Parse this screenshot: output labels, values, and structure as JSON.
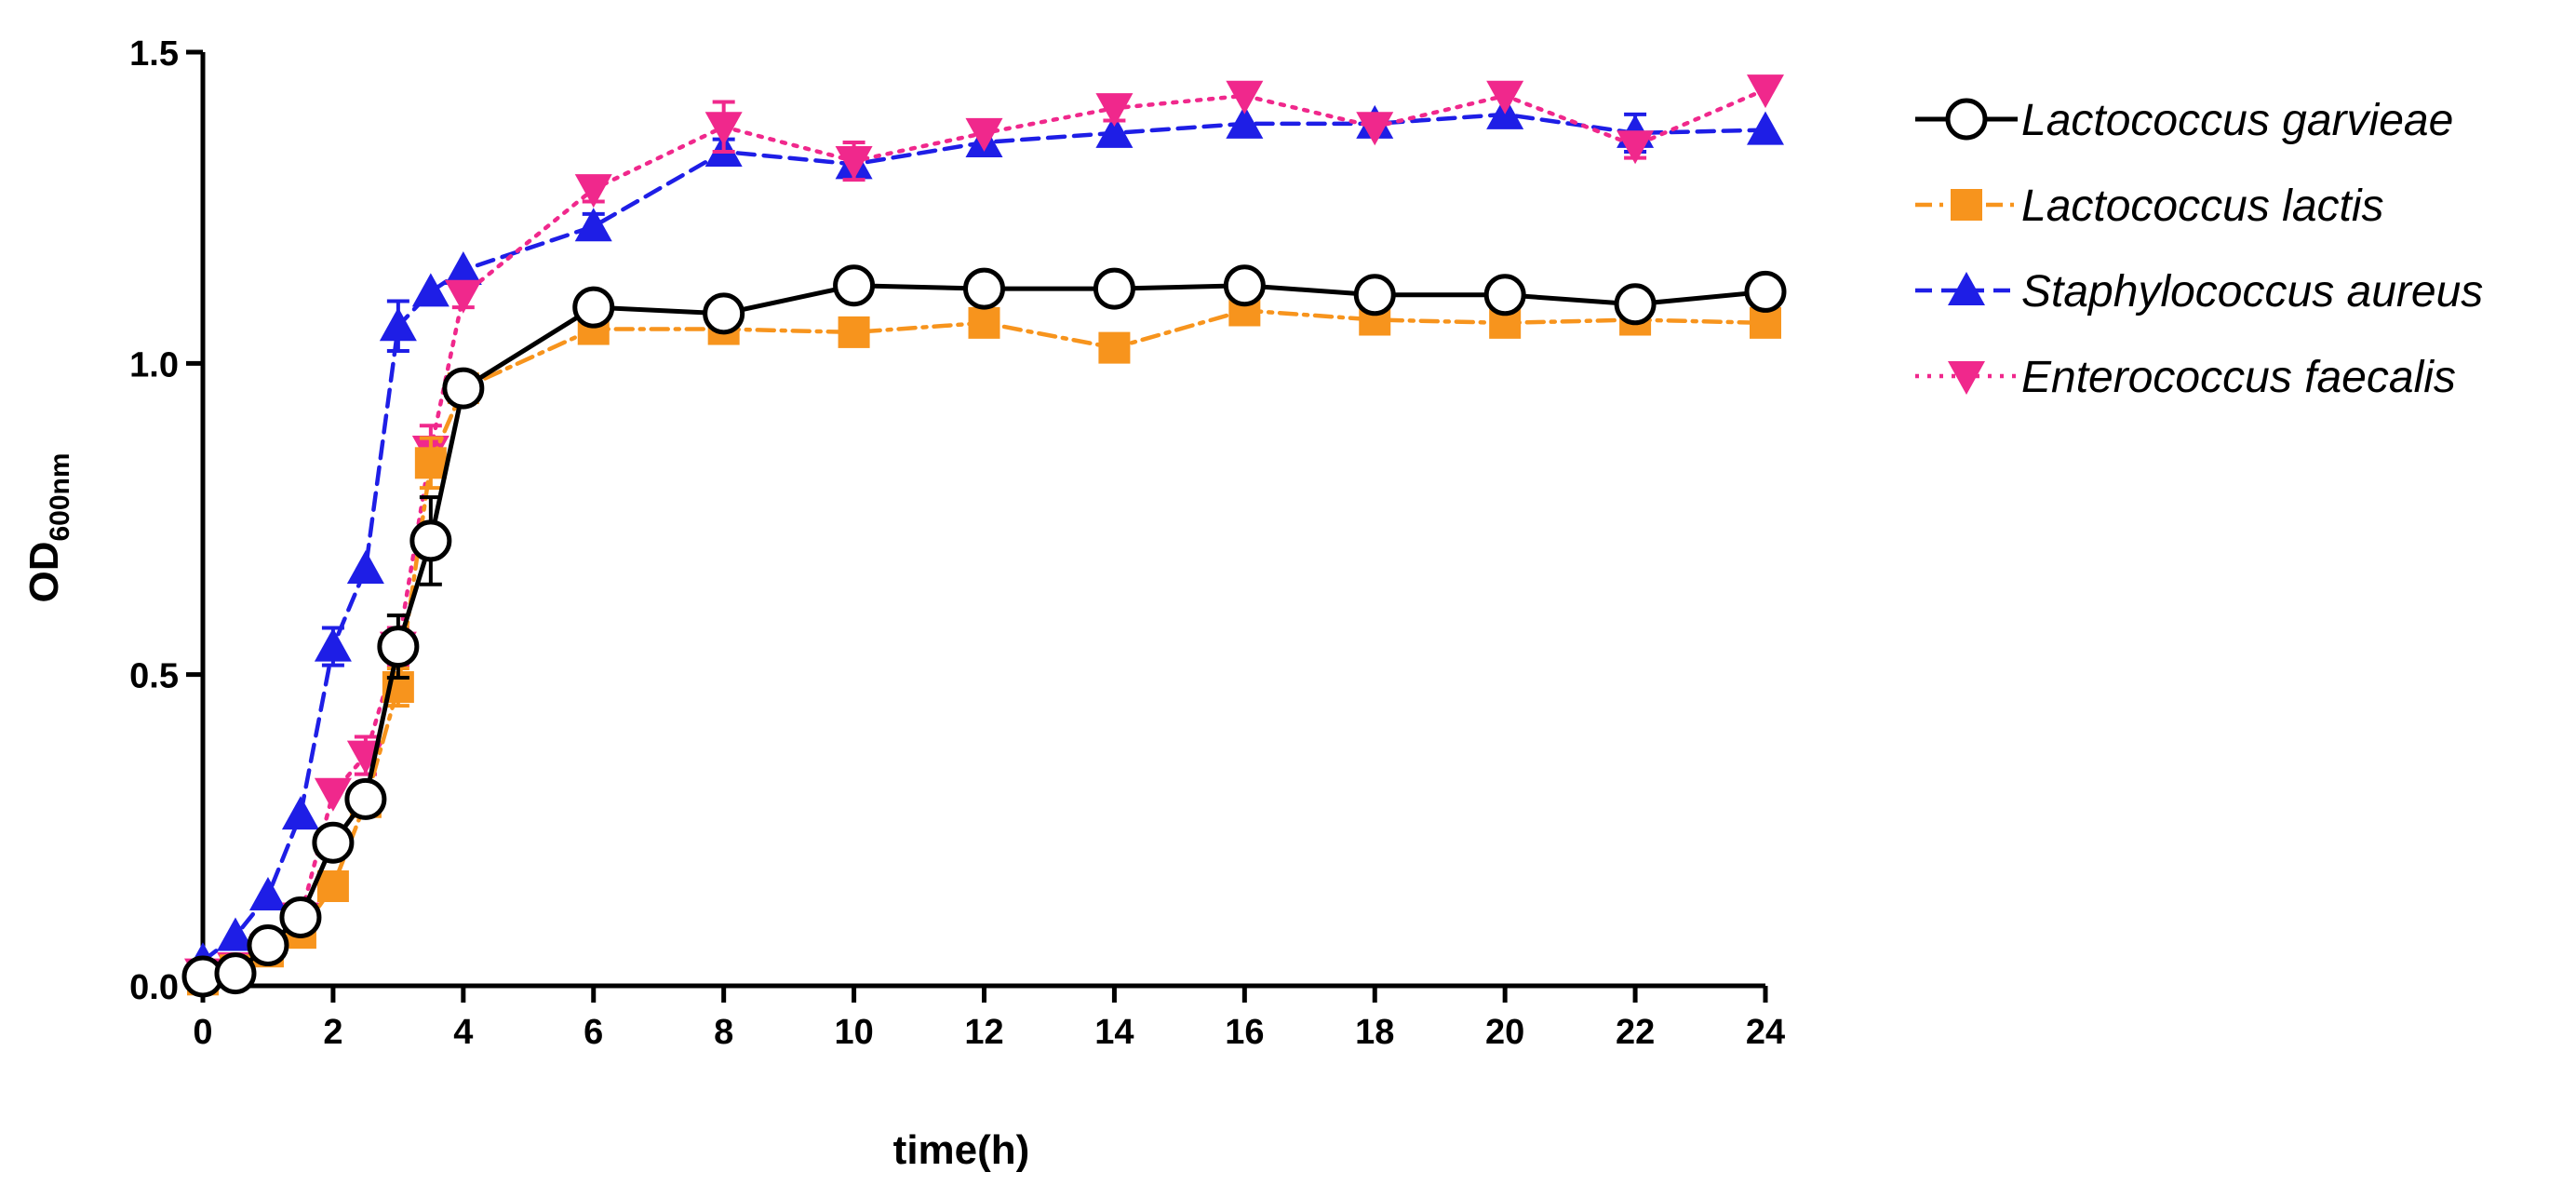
{
  "chart_data": {
    "type": "line",
    "title": "",
    "xlabel": "time(h)",
    "ylabel": {
      "main": "OD",
      "subscript": "600nm"
    },
    "xlim": [
      0,
      24
    ],
    "ylim": [
      0,
      1.5
    ],
    "xticks": [
      "0",
      "2",
      "4",
      "6",
      "8",
      "10",
      "12",
      "14",
      "16",
      "18",
      "20",
      "22",
      "24"
    ],
    "yticks": [
      "0.0",
      "0.5",
      "1.0",
      "1.5"
    ],
    "legend_position": "right",
    "grid": false,
    "x": [
      0,
      0.5,
      1,
      1.5,
      2,
      2.5,
      3,
      3.5,
      4,
      6,
      8,
      10,
      12,
      14,
      16,
      18,
      20,
      22,
      24
    ],
    "series": [
      {
        "name": "Lactococcus garvieae",
        "color": "#000000",
        "marker": "circle-open",
        "line": "solid",
        "values": [
          0.015,
          0.02,
          0.065,
          0.11,
          0.23,
          0.3,
          0.545,
          0.715,
          0.96,
          1.09,
          1.08,
          1.125,
          1.12,
          1.12,
          1.125,
          1.11,
          1.11,
          1.095,
          1.115
        ],
        "errors": [
          0.005,
          0.005,
          0.01,
          0.01,
          0.01,
          0.02,
          0.05,
          0.07,
          0.02,
          0.02,
          0.01,
          0.01,
          0.01,
          0.01,
          0.01,
          0.01,
          0.01,
          0.01,
          0.01
        ]
      },
      {
        "name": "Lactococcus lactis",
        "color": "#F7941D",
        "marker": "square",
        "line": "dashdot",
        "values": [
          0.01,
          0.025,
          0.055,
          0.085,
          0.16,
          0.295,
          0.48,
          0.84,
          0.96,
          1.055,
          1.055,
          1.05,
          1.065,
          1.025,
          1.085,
          1.07,
          1.065,
          1.07,
          1.065
        ],
        "errors": [
          0.005,
          0.005,
          0.01,
          0.01,
          0.01,
          0.01,
          0.03,
          0.04,
          0.01,
          0.01,
          0.01,
          0.01,
          0.01,
          0.01,
          0.01,
          0.01,
          0.01,
          0.01,
          0.01
        ]
      },
      {
        "name": "Staphylococcus aureus",
        "color": "#1E1EE6",
        "marker": "triangle-up",
        "line": "dashed",
        "values": [
          0.04,
          0.08,
          0.145,
          0.275,
          0.545,
          0.67,
          1.06,
          1.115,
          1.15,
          1.22,
          1.34,
          1.32,
          1.355,
          1.37,
          1.385,
          1.385,
          1.4,
          1.37,
          1.375
        ],
        "errors": [
          0.005,
          0.005,
          0.01,
          0.01,
          0.03,
          0.01,
          0.04,
          0.01,
          0.01,
          0.02,
          0.02,
          0.02,
          0.01,
          0.01,
          0.01,
          0.01,
          0.01,
          0.03,
          0.01
        ]
      },
      {
        "name": "Enterococcus faecalis",
        "color": "#F0288C",
        "marker": "triangle-down",
        "line": "dotted",
        "values": [
          0.02,
          0.03,
          0.06,
          0.11,
          0.31,
          0.37,
          0.545,
          0.86,
          1.11,
          1.28,
          1.38,
          1.325,
          1.37,
          1.41,
          1.43,
          1.38,
          1.43,
          1.35,
          1.44
        ],
        "errors": [
          0.005,
          0.005,
          0.01,
          0.01,
          0.01,
          0.03,
          0.03,
          0.04,
          0.02,
          0.02,
          0.04,
          0.03,
          0.01,
          0.02,
          0.01,
          0.01,
          0.01,
          0.02,
          0.01
        ]
      }
    ]
  }
}
